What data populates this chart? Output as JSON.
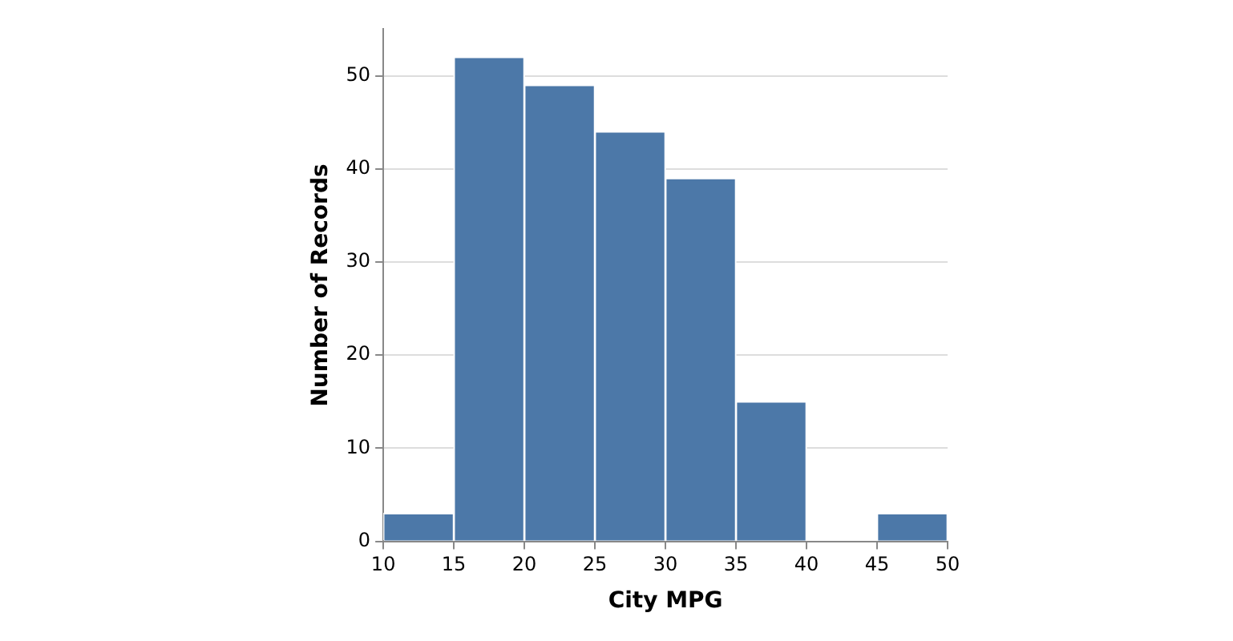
{
  "chart_data": {
    "type": "histogram",
    "xlabel": "City MPG",
    "ylabel": "Number of Records",
    "bins": [
      10,
      15,
      20,
      25,
      30,
      35,
      40,
      45,
      50
    ],
    "values": [
      3,
      52,
      49,
      44,
      39,
      15,
      0,
      3
    ],
    "color": "#4c78a8",
    "xlim": [
      10,
      50
    ],
    "xticks": [
      10,
      15,
      20,
      25,
      30,
      35,
      40,
      45,
      50
    ],
    "ylim": [
      0,
      55
    ],
    "yticks": [
      0,
      10,
      20,
      30,
      40,
      50
    ],
    "grid": "y"
  }
}
